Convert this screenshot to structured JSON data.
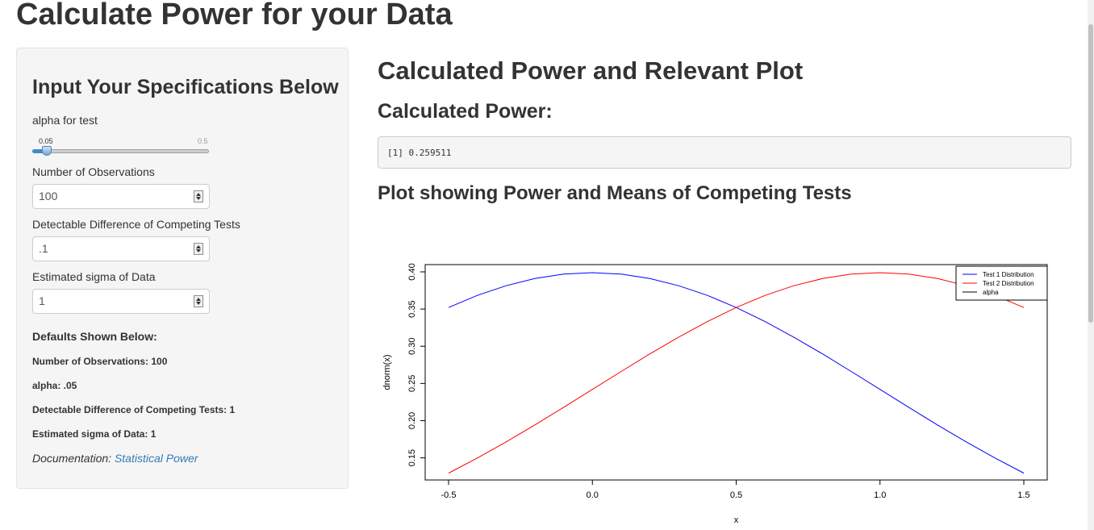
{
  "page": {
    "title": "Calculate Power for your Data"
  },
  "sidebar": {
    "heading": "Input Your Specifications Below",
    "alpha_slider": {
      "label": "alpha for test",
      "min_label": "0.05",
      "max_label": "0.5",
      "value": 0.05
    },
    "n_obs": {
      "label": "Number of Observations",
      "value": "100"
    },
    "diff": {
      "label": "Detectable Difference of Competing Tests",
      "value": ".1"
    },
    "sigma": {
      "label": "Estimated sigma of Data",
      "value": "1"
    },
    "defaults": {
      "heading": "Defaults Shown Below:",
      "items": [
        "Number of Observations: 100",
        "alpha: .05",
        "Detectable Difference of Competing Tests: 1",
        "Estimated sigma of Data: 1"
      ]
    },
    "documentation": {
      "prefix": "Documentation:",
      "link_text": "Statistical Power"
    }
  },
  "main": {
    "title": "Calculated Power and Relevant Plot",
    "power_heading": "Calculated Power:",
    "power_output": "[1] 0.259511",
    "plot_heading": "Plot showing Power and Means of Competing Tests"
  },
  "chart_data": {
    "type": "line",
    "xlabel": "x",
    "ylabel": "dnorm(x)",
    "xlim": [
      -0.5,
      1.5
    ],
    "ylim": [
      0.13,
      0.4
    ],
    "x_ticks": [
      "-0.5",
      "0.0",
      "0.5",
      "1.0",
      "1.5"
    ],
    "y_ticks": [
      "0.15",
      "0.20",
      "0.25",
      "0.30",
      "0.35",
      "0.40"
    ],
    "legend": {
      "placement": "top-right",
      "entries": [
        "Test 1 Distribution",
        "Test 2 Distribution",
        "alpha"
      ]
    },
    "series": [
      {
        "name": "Test 1 Distribution",
        "color": "#0000ff",
        "x": [
          -0.5,
          -0.4,
          -0.3,
          -0.2,
          -0.1,
          0.0,
          0.1,
          0.2,
          0.3,
          0.4,
          0.5,
          0.6,
          0.7,
          0.8,
          0.9,
          1.0,
          1.1,
          1.2,
          1.3,
          1.4,
          1.5
        ],
        "y": [
          0.3521,
          0.3683,
          0.3814,
          0.391,
          0.397,
          0.3989,
          0.397,
          0.391,
          0.3814,
          0.3683,
          0.3521,
          0.3332,
          0.3123,
          0.2897,
          0.2661,
          0.242,
          0.2179,
          0.1942,
          0.1714,
          0.1497,
          0.1295
        ]
      },
      {
        "name": "Test 2 Distribution",
        "color": "#ff0000",
        "x": [
          -0.5,
          -0.4,
          -0.3,
          -0.2,
          -0.1,
          0.0,
          0.1,
          0.2,
          0.3,
          0.4,
          0.5,
          0.6,
          0.7,
          0.8,
          0.9,
          1.0,
          1.1,
          1.2,
          1.3,
          1.4,
          1.5
        ],
        "y": [
          0.1295,
          0.1497,
          0.1714,
          0.1942,
          0.2179,
          0.242,
          0.2661,
          0.2897,
          0.3123,
          0.3332,
          0.3521,
          0.3683,
          0.3814,
          0.391,
          0.397,
          0.3989,
          0.397,
          0.391,
          0.3814,
          0.3683,
          0.3521
        ]
      }
    ]
  },
  "colors": {
    "link": "#337ab7",
    "panel_bg": "#f5f5f5",
    "slider_fill": "#428bca",
    "alpha_line": "#000000"
  }
}
